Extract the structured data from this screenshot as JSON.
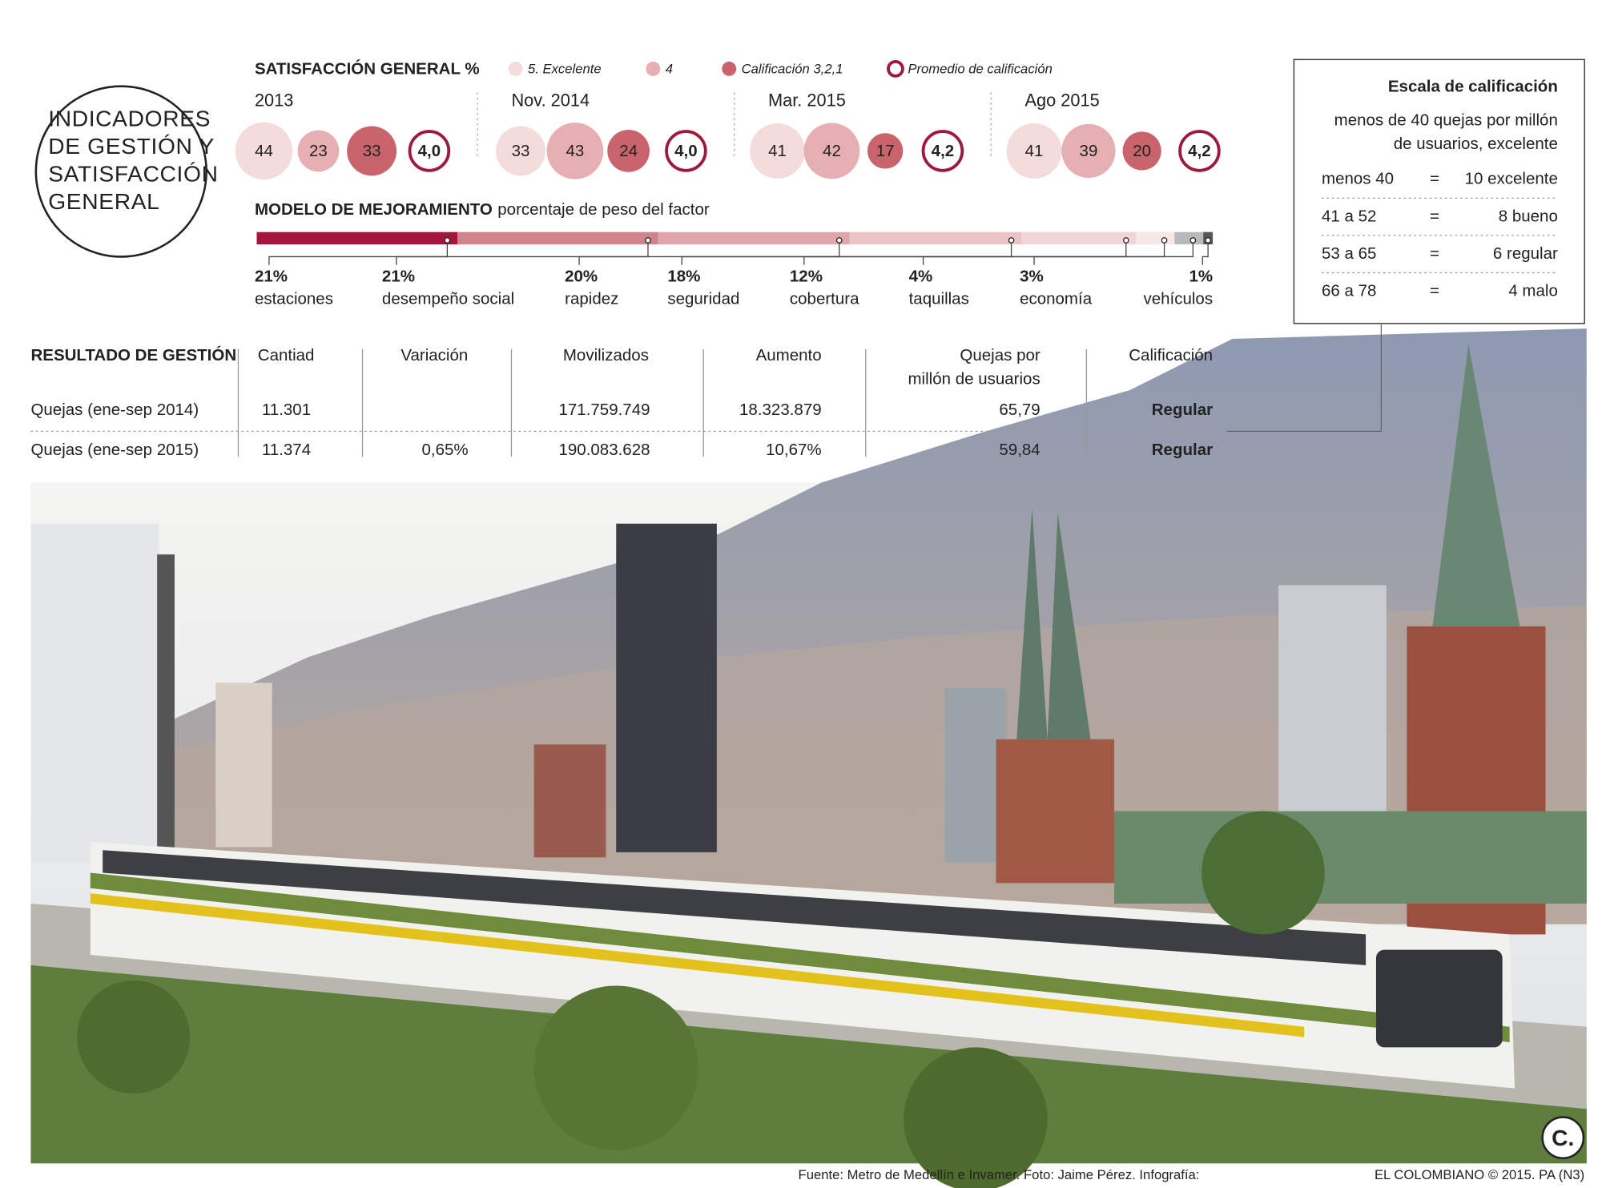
{
  "title": [
    "INDICADORES",
    "DE GESTIÓN Y",
    "SATISFACCIÓN",
    "GENERAL"
  ],
  "satisfaction": {
    "title": "SATISFACCIÓN GENERAL %",
    "legend": [
      {
        "label": "5. Excelente",
        "color": "#f4dcdd"
      },
      {
        "label": "4",
        "color": "#e6b0b3"
      },
      {
        "label": "Calificación 3,2,1",
        "color": "#c9646d"
      },
      {
        "label": "Promedio de calificación",
        "color": "#9e1a3c"
      }
    ],
    "periods": [
      {
        "name": "2013",
        "values": [
          44,
          23,
          33
        ],
        "average": "4,0"
      },
      {
        "name": "Nov. 2014",
        "values": [
          33,
          43,
          24
        ],
        "average": "4,0"
      },
      {
        "name": "Mar. 2015",
        "values": [
          41,
          42,
          17
        ],
        "average": "4,2"
      },
      {
        "name": "Ago 2015",
        "values": [
          41,
          39,
          20
        ],
        "average": "4,2"
      }
    ]
  },
  "model": {
    "title": "MODELO DE MEJORAMIENTO",
    "subtitle": "porcentaje de peso del factor",
    "factors": [
      {
        "label": "estaciones",
        "value": 21,
        "value_label": "21%",
        "color": "#a5153b"
      },
      {
        "label": "desempeño social",
        "value": 21,
        "value_label": "21%",
        "color": "#d0838a"
      },
      {
        "label": "rapidez",
        "value": 20,
        "value_label": "20%",
        "color": "#dfa6aa"
      },
      {
        "label": "seguridad",
        "value": 18,
        "value_label": "18%",
        "color": "#ebc4c6"
      },
      {
        "label": "cobertura",
        "value": 12,
        "value_label": "12%",
        "color": "#f2d6d7"
      },
      {
        "label": "taquillas",
        "value": 4,
        "value_label": "4%",
        "color": "#f7e7e7"
      },
      {
        "label": "economía",
        "value": 3,
        "value_label": "3%",
        "color": "#b8b9bb"
      },
      {
        "label": "vehículos",
        "value": 1,
        "value_label": "1%",
        "color": "#555658"
      }
    ]
  },
  "table": {
    "title": "RESULTADO DE GESTIÓN",
    "headers": [
      "Cantiad",
      "Variación",
      "Movilizados",
      "Aumento",
      [
        "Quejas por",
        "millón de usuarios"
      ],
      "Calificación"
    ],
    "rows": [
      [
        "Quejas (ene-sep 2014)",
        "11.301",
        null,
        "171.759.749",
        "18.323.879",
        "65,79",
        "Regular"
      ],
      [
        "Quejas (ene-sep 2015)",
        "11.374",
        "0,65%",
        "190.083.628",
        "10,67%",
        "59,84",
        "Regular"
      ]
    ]
  },
  "scale": {
    "title": "Escala de calificación",
    "note": [
      "menos de 40 quejas por millón",
      "de usuarios, excelente"
    ],
    "rows": [
      [
        "menos 40",
        "=",
        "10 excelente"
      ],
      [
        "41 a 52",
        "=",
        "8 bueno"
      ],
      [
        "53 a 65",
        "=",
        "6 regular"
      ],
      [
        "66 a 78",
        "=",
        "4 malo"
      ]
    ]
  },
  "footer": {
    "source": "Fuente: Metro de Medellín e Invamer. Foto: Jaime Pérez. Infografía:",
    "credit": "EL COLOMBIANO © 2015. PA (N3)",
    "logo": "C."
  }
}
